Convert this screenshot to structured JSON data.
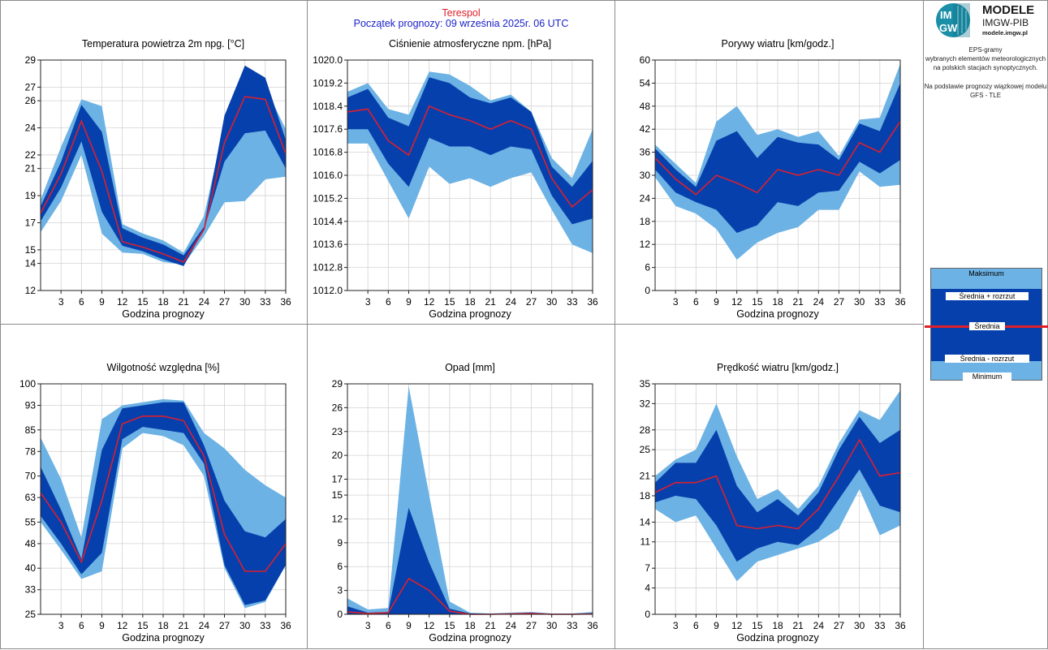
{
  "header": {
    "station": "Terespol",
    "forecast_start": "Początek prognozy: 09 września 2025r. 06 UTC"
  },
  "sidebar": {
    "logo_short": "IMGW",
    "logo_title": "MODELE",
    "logo_subtitle": "IMGW-PIB",
    "logo_url": "modele.imgw.pl",
    "description_lines": [
      "EPS-gramy",
      "wybranych elementów meteorologicznych",
      "na polskich stacjach  synoptycznych."
    ],
    "model_lines": [
      "Na podstawie prognozy wiązkowej modelu",
      "GFS - TLE"
    ],
    "legend": {
      "max": "Maksimum",
      "mean_plus": "Średnia + rozrzut",
      "mean": "Średnia",
      "mean_minus": "Średnia - rozrzut",
      "min": "Minimum"
    }
  },
  "colors": {
    "minmax_band": "#6cb2e4",
    "spread_band": "#0640ac",
    "mean_line": "#dc1f2f",
    "grid": "#d3d3d3",
    "station_title": "#e0202a",
    "forecast_title": "#1a22c8"
  },
  "chart_data": [
    {
      "id": "temp",
      "type": "area",
      "title": "Temperatura powietrza 2m npg. [°C]",
      "xlabel": "Godzina prognozy",
      "x": [
        0,
        3,
        6,
        9,
        12,
        15,
        18,
        21,
        24,
        27,
        30,
        33,
        36
      ],
      "xticks": [
        "3",
        "6",
        "9",
        "12",
        "15",
        "18",
        "21",
        "24",
        "27",
        "30",
        "33",
        "36"
      ],
      "yticks": [
        "12",
        "14",
        "15",
        "17",
        "19",
        "21",
        "22",
        "24",
        "26",
        "27",
        "29"
      ],
      "ylim": [
        12,
        29
      ],
      "series": [
        {
          "name": "Maksimum",
          "values": [
            18.7,
            22.6,
            26.1,
            25.6,
            16.9,
            16.2,
            15.7,
            14.8,
            17.5,
            24.3,
            26.7,
            27.0,
            23.9
          ]
        },
        {
          "name": "Średnia + rozrzut",
          "values": [
            18.2,
            21.5,
            25.7,
            23.7,
            16.6,
            15.9,
            15.4,
            14.6,
            16.7,
            24.9,
            28.6,
            27.7,
            23.1
          ]
        },
        {
          "name": "Średnia",
          "values": [
            17.7,
            20.6,
            24.5,
            20.8,
            15.6,
            15.2,
            14.7,
            14.1,
            16.5,
            22.9,
            26.3,
            26.1,
            22.1
          ]
        },
        {
          "name": "Średnia - rozrzut",
          "values": [
            17.1,
            19.6,
            23.0,
            17.8,
            15.3,
            14.9,
            14.3,
            13.8,
            16.5,
            21.5,
            23.6,
            23.8,
            21.0
          ]
        },
        {
          "name": "Minimum",
          "values": [
            16.3,
            18.6,
            22.0,
            16.2,
            14.8,
            14.7,
            14.1,
            13.9,
            16.0,
            18.5,
            18.6,
            20.2,
            20.4
          ]
        }
      ]
    },
    {
      "id": "pressure",
      "type": "area",
      "title": "Ciśnienie atmosferyczne npm. [hPa]",
      "xlabel": "Godzina prognozy",
      "x": [
        0,
        3,
        6,
        9,
        12,
        15,
        18,
        21,
        24,
        27,
        30,
        33,
        36
      ],
      "xticks": [
        "3",
        "6",
        "9",
        "12",
        "15",
        "18",
        "21",
        "24",
        "27",
        "30",
        "33",
        "36"
      ],
      "yticks": [
        "1012.0",
        "1012.8",
        "1013.6",
        "1014.4",
        "1015.2",
        "1016.0",
        "1016.8",
        "1017.6",
        "1018.4",
        "1019.2",
        "1020.0"
      ],
      "ylim": [
        1012.0,
        1020.0
      ],
      "series": [
        {
          "name": "Maksimum",
          "values": [
            1018.9,
            1019.2,
            1018.3,
            1018.1,
            1019.6,
            1019.5,
            1019.1,
            1018.6,
            1018.8,
            1018.2,
            1016.6,
            1015.9,
            1017.6
          ]
        },
        {
          "name": "Średnia + rozrzut",
          "values": [
            1018.7,
            1019.0,
            1018.0,
            1017.7,
            1019.4,
            1019.2,
            1018.7,
            1018.5,
            1018.7,
            1018.2,
            1016.3,
            1015.6,
            1016.5
          ]
        },
        {
          "name": "Średnia",
          "values": [
            1018.2,
            1018.3,
            1017.2,
            1016.7,
            1018.4,
            1018.1,
            1017.9,
            1017.6,
            1017.9,
            1017.6,
            1015.9,
            1014.9,
            1015.5
          ]
        },
        {
          "name": "Średnia - rozrzut",
          "values": [
            1017.6,
            1017.6,
            1016.4,
            1015.6,
            1017.3,
            1017.0,
            1017.0,
            1016.7,
            1017.0,
            1016.9,
            1015.3,
            1014.3,
            1014.5
          ]
        },
        {
          "name": "Minimum",
          "values": [
            1017.1,
            1017.1,
            1015.8,
            1014.5,
            1016.3,
            1015.7,
            1015.9,
            1015.6,
            1015.9,
            1016.1,
            1014.8,
            1013.6,
            1013.3
          ]
        }
      ]
    },
    {
      "id": "gusts",
      "type": "area",
      "title": "Porywy wiatru [km/godz.]",
      "xlabel": "Godzina prognozy",
      "x": [
        0,
        3,
        6,
        9,
        12,
        15,
        18,
        21,
        24,
        27,
        30,
        33,
        36
      ],
      "xticks": [
        "3",
        "6",
        "9",
        "12",
        "15",
        "18",
        "21",
        "24",
        "27",
        "30",
        "33",
        "36"
      ],
      "yticks": [
        "0",
        "6",
        "12",
        "18",
        "24",
        "30",
        "36",
        "42",
        "48",
        "54",
        "60"
      ],
      "ylim": [
        0,
        60
      ],
      "series": [
        {
          "name": "Maksimum",
          "values": [
            38.0,
            33.0,
            28.0,
            44.0,
            48.0,
            40.5,
            42.0,
            40.0,
            41.5,
            35.0,
            44.5,
            45.0,
            59.0
          ]
        },
        {
          "name": "Średnia + rozrzut",
          "values": [
            37.0,
            31.5,
            27.0,
            39.0,
            41.5,
            34.5,
            40.0,
            38.5,
            38.0,
            34.0,
            43.5,
            41.5,
            54.0
          ]
        },
        {
          "name": "Średnia",
          "values": [
            34.5,
            29.0,
            25.0,
            30.0,
            28.0,
            25.5,
            31.5,
            30.0,
            31.5,
            30.0,
            38.5,
            36.0,
            44.0
          ]
        },
        {
          "name": "Średnia - rozrzut",
          "values": [
            31.5,
            25.5,
            23.0,
            21.0,
            15.0,
            17.0,
            23.0,
            22.0,
            25.5,
            26.0,
            33.5,
            30.5,
            34.0
          ]
        },
        {
          "name": "Minimum",
          "values": [
            29.5,
            22.0,
            20.0,
            16.0,
            8.0,
            12.5,
            15.0,
            16.5,
            21.0,
            21.0,
            31.0,
            27.0,
            27.5
          ]
        }
      ]
    },
    {
      "id": "humidity",
      "type": "area",
      "title": "Wilgotność względna [%]",
      "xlabel": "Godzina prognozy",
      "x": [
        0,
        3,
        6,
        9,
        12,
        15,
        18,
        21,
        24,
        27,
        30,
        33,
        36
      ],
      "xticks": [
        "3",
        "6",
        "9",
        "12",
        "15",
        "18",
        "21",
        "24",
        "27",
        "30",
        "33",
        "36"
      ],
      "yticks": [
        "25",
        "33",
        "40",
        "48",
        "55",
        "63",
        "70",
        "78",
        "85",
        "93",
        "100"
      ],
      "ylim": [
        25,
        100
      ],
      "series": [
        {
          "name": "Maksimum",
          "values": [
            82.5,
            69.0,
            50.0,
            88.5,
            93.0,
            94.0,
            95.0,
            94.5,
            84.0,
            79.0,
            72.0,
            67.0,
            63.0
          ]
        },
        {
          "name": "Średnia + rozrzut",
          "values": [
            73.0,
            59.0,
            43.0,
            78.5,
            92.0,
            93.0,
            94.0,
            94.0,
            80.0,
            62.0,
            52.0,
            50.0,
            56.0
          ]
        },
        {
          "name": "Średnia",
          "values": [
            64.5,
            55.0,
            42.0,
            62.0,
            87.0,
            89.5,
            89.5,
            88.0,
            76.5,
            51.0,
            39.0,
            39.0,
            48.0
          ]
        },
        {
          "name": "Średnia - rozrzut",
          "values": [
            57.0,
            48.0,
            38.0,
            45.0,
            82.0,
            86.0,
            85.0,
            84.0,
            74.0,
            41.0,
            28.0,
            29.5,
            41.0
          ]
        },
        {
          "name": "Minimum",
          "values": [
            55.0,
            46.0,
            36.5,
            39.0,
            79.0,
            84.0,
            83.0,
            80.0,
            70.0,
            40.0,
            27.0,
            29.0,
            41.0
          ]
        }
      ]
    },
    {
      "id": "precip",
      "type": "area",
      "title": "Opad [mm]",
      "xlabel": "Godzina prognozy",
      "x": [
        0,
        3,
        6,
        9,
        12,
        15,
        18,
        21,
        24,
        27,
        30,
        33,
        36
      ],
      "xticks": [
        "3",
        "6",
        "9",
        "12",
        "15",
        "18",
        "21",
        "24",
        "27",
        "30",
        "33",
        "36"
      ],
      "yticks": [
        "0",
        "3",
        "6",
        "9",
        "12",
        "15",
        "17",
        "20",
        "23",
        "26",
        "29"
      ],
      "ylim": [
        0,
        29
      ],
      "series": [
        {
          "name": "Maksimum",
          "values": [
            2.0,
            0.6,
            0.8,
            28.7,
            15.0,
            1.6,
            0.2,
            0.1,
            0.2,
            0.3,
            0.1,
            0.1,
            0.3
          ]
        },
        {
          "name": "Średnia + rozrzut",
          "values": [
            1.0,
            0.2,
            0.3,
            13.4,
            6.5,
            0.7,
            0.1,
            0.05,
            0.1,
            0.2,
            0.05,
            0.05,
            0.15
          ]
        },
        {
          "name": "Średnia",
          "values": [
            0.3,
            0.1,
            0.2,
            4.5,
            3.0,
            0.4,
            0.0,
            0.0,
            0.05,
            0.1,
            0.0,
            0.0,
            0.05
          ]
        },
        {
          "name": "Średnia - rozrzut",
          "values": [
            0.0,
            0.0,
            0.0,
            0.0,
            0.0,
            0.0,
            0.0,
            0.0,
            0.0,
            0.0,
            0.0,
            0.0,
            0.0
          ]
        },
        {
          "name": "Minimum",
          "values": [
            0.0,
            0.0,
            0.0,
            0.0,
            0.0,
            0.0,
            0.0,
            0.0,
            0.0,
            0.0,
            0.0,
            0.0,
            0.0
          ]
        }
      ]
    },
    {
      "id": "wind",
      "type": "area",
      "title": "Prędkość wiatru [km/godz.]",
      "xlabel": "Godzina prognozy",
      "x": [
        0,
        3,
        6,
        9,
        12,
        15,
        18,
        21,
        24,
        27,
        30,
        33,
        36
      ],
      "xticks": [
        "3",
        "6",
        "9",
        "12",
        "15",
        "18",
        "21",
        "24",
        "27",
        "30",
        "33",
        "36"
      ],
      "yticks": [
        "0",
        "4",
        "7",
        "11",
        "14",
        "18",
        "21",
        "25",
        "28",
        "32",
        "35"
      ],
      "ylim": [
        0,
        35
      ],
      "series": [
        {
          "name": "Maksimum",
          "values": [
            21.0,
            23.5,
            25.0,
            32.0,
            24.0,
            17.5,
            19.0,
            16.0,
            19.5,
            26.0,
            31.0,
            29.5,
            34.0
          ]
        },
        {
          "name": "Średnia + rozrzut",
          "values": [
            20.0,
            23.0,
            23.0,
            28.0,
            19.5,
            15.5,
            17.5,
            15.0,
            18.5,
            25.0,
            30.0,
            26.0,
            28.0
          ]
        },
        {
          "name": "Średnia",
          "values": [
            18.5,
            20.0,
            20.0,
            21.0,
            13.5,
            13.0,
            13.5,
            13.0,
            16.0,
            21.0,
            26.5,
            21.0,
            21.5
          ]
        },
        {
          "name": "Średnia - rozrzut",
          "values": [
            17.0,
            18.0,
            17.5,
            13.5,
            8.0,
            10.0,
            11.0,
            10.5,
            13.0,
            17.5,
            22.0,
            16.5,
            15.5
          ]
        },
        {
          "name": "Minimum",
          "values": [
            16.0,
            14.0,
            15.0,
            10.0,
            5.0,
            8.0,
            9.0,
            10.0,
            11.0,
            13.0,
            19.0,
            12.0,
            13.5
          ]
        }
      ]
    }
  ]
}
